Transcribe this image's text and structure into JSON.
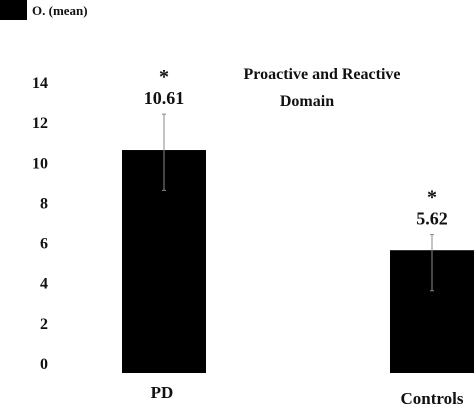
{
  "chart_data": {
    "type": "bar",
    "title_line1": "Proactive and Reactive",
    "title_line2": "Domain",
    "legend": "O. (mean)",
    "categories": [
      "PD",
      "Controls"
    ],
    "values": [
      10.61,
      5.62
    ],
    "value_labels": [
      "10.61",
      "5.62"
    ],
    "significance": [
      "*",
      "*"
    ],
    "error_low": [
      8.6,
      3.6
    ],
    "error_high": [
      12.4,
      6.4
    ],
    "yticks": [
      0,
      2,
      4,
      6,
      8,
      10,
      12,
      14
    ],
    "ylim": [
      0,
      14
    ],
    "bar_color": "#000000",
    "errorbar_color": "#888888"
  }
}
